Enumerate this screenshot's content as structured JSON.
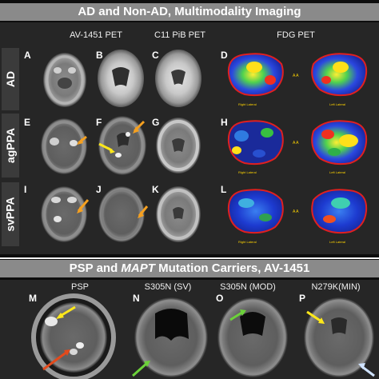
{
  "banner_top": {
    "title": "AD and Non-AD, Multimodality Imaging"
  },
  "columns": {
    "av1451": "AV-1451 PET",
    "pib": "C11 PiB PET",
    "fdg": "FDG PET"
  },
  "rows": {
    "ad": "AD",
    "agppa": "agPPA",
    "svppa": "svPPA"
  },
  "panels": {
    "A": "A",
    "B": "B",
    "C": "C",
    "D": "D",
    "E": "E",
    "F": "F",
    "G": "G",
    "H": "H",
    "I": "I",
    "J": "J",
    "K": "K",
    "L": "L",
    "M": "M",
    "N": "N",
    "O": "O",
    "P": "P"
  },
  "fdg_labels": {
    "right_lateral": "Right Lateral",
    "left_lateral": "Left Lateral",
    "aa": "A A"
  },
  "banner_bottom": {
    "title_a": "PSP and ",
    "title_b": "MAPT",
    "title_c": " Mutation Carriers, AV-1451"
  },
  "bottom_columns": {
    "psp": "PSP",
    "s305n_sv": "S305N (SV)",
    "s305n_mod": "S305N (MOD)",
    "n279k_min": "N279K(MIN)"
  },
  "colors": {
    "banner": "#8a8a8a",
    "panel_bg": "#262626",
    "arrow_orange": "#f5a020",
    "arrow_yellow": "#ffe81a",
    "arrow_green": "#6cd23a",
    "arrow_red": "#e24a1c",
    "arrow_blue": "#cfe2ff"
  }
}
